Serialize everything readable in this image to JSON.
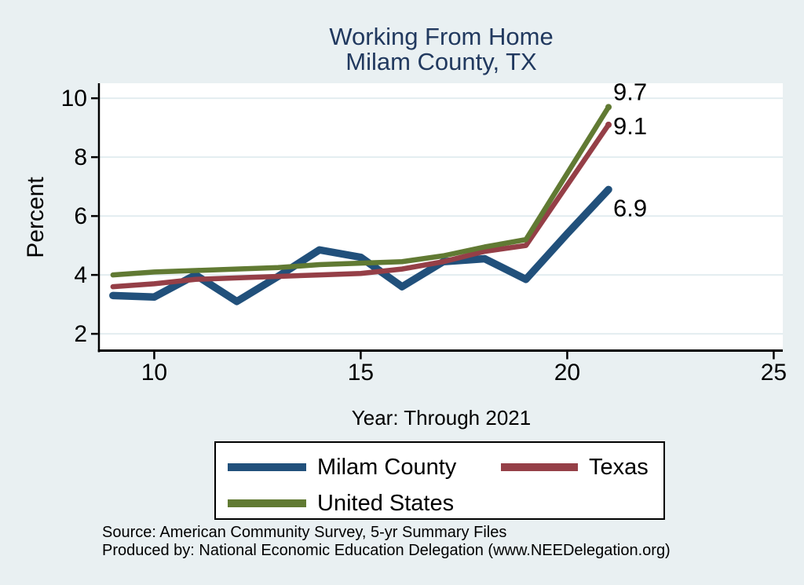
{
  "title": {
    "line1": "Working From Home",
    "line2": "Milam County, TX"
  },
  "labels": {
    "ylabel": "Percent",
    "xlabel": "Year: Through 2021"
  },
  "legend": {
    "items": [
      "Milam County",
      "Texas",
      "United States"
    ]
  },
  "source": {
    "line1": "Source: American Community Survey, 5-yr Summary Files",
    "line2": "Produced by: National Economic Education Delegation (www.NEEDelegation.org)"
  },
  "colors": {
    "background": "#e9f0f2",
    "plot_background": "#ffffff",
    "gridline": "#e3edf0",
    "axis": "#000000",
    "title": "#21395f"
  },
  "chart_data": {
    "type": "line",
    "title": "Working From Home",
    "subtitle": "Milam County, TX",
    "xlabel": "Year: Through 2021",
    "ylabel": "Percent",
    "x": [
      9,
      10,
      11,
      12,
      13,
      14,
      15,
      16,
      17,
      18,
      19,
      20,
      21
    ],
    "series": [
      {
        "name": "Milam County",
        "color": "#21507b",
        "values": [
          3.3,
          3.25,
          4.0,
          3.1,
          3.95,
          4.85,
          4.6,
          3.6,
          4.45,
          4.55,
          3.85,
          5.4,
          6.9
        ],
        "end_label": "6.9"
      },
      {
        "name": "Texas",
        "color": "#953f47",
        "values": [
          3.6,
          3.7,
          3.85,
          3.9,
          3.95,
          4.0,
          4.05,
          4.2,
          4.45,
          4.8,
          5.0,
          7.05,
          9.1
        ],
        "end_label": "9.1"
      },
      {
        "name": "United States",
        "color": "#617a33",
        "values": [
          4.0,
          4.1,
          4.15,
          4.2,
          4.25,
          4.35,
          4.4,
          4.45,
          4.65,
          4.95,
          5.2,
          7.45,
          9.7
        ],
        "end_label": "9.7"
      }
    ],
    "xticks": [
      10,
      15,
      20,
      25
    ],
    "yticks": [
      2,
      4,
      6,
      8,
      10
    ],
    "xlim": [
      8.68,
      25.22
    ],
    "ylim": [
      1.47,
      10.51
    ],
    "grid": "horizontal-only",
    "legend_position": "bottom"
  }
}
